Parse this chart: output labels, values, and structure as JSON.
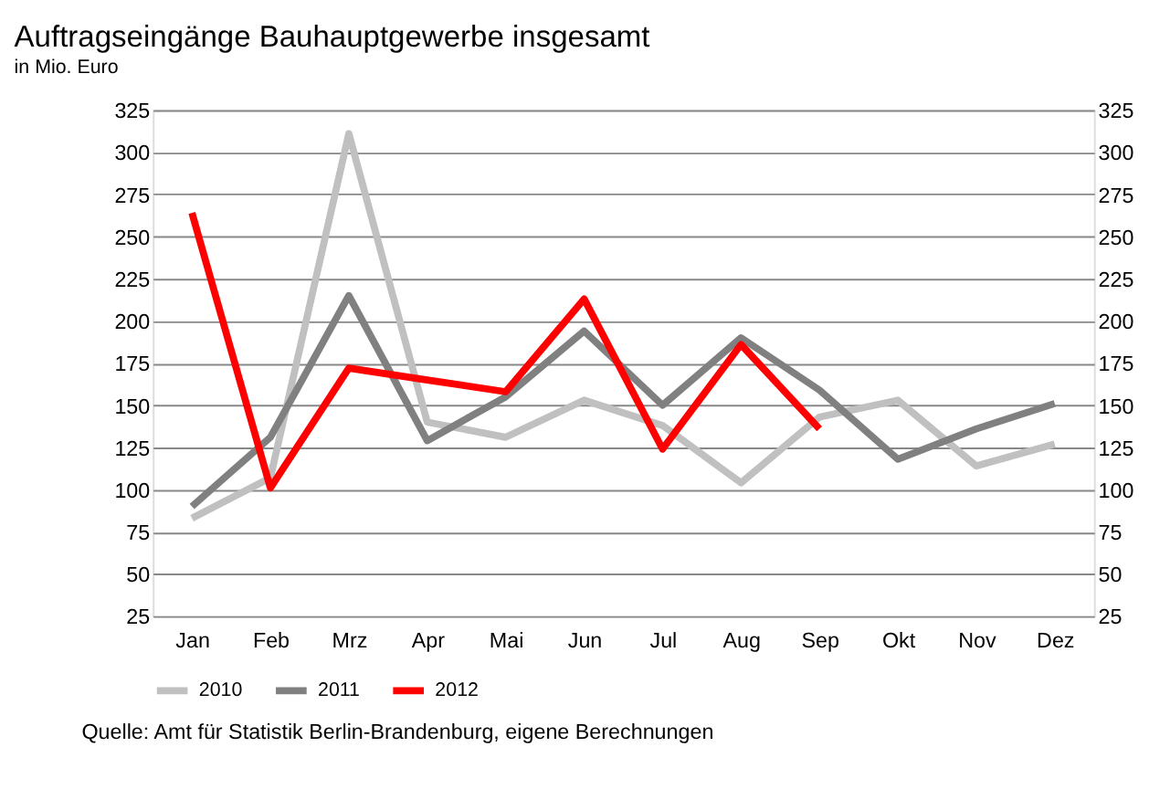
{
  "chart_data": {
    "type": "line",
    "title": "Auftragseingänge Bauhauptgewerbe insgesamt",
    "subtitle": "in Mio. Euro",
    "categories": [
      "Jan",
      "Feb",
      "Mrz",
      "Apr",
      "Mai",
      "Jun",
      "Jul",
      "Aug",
      "Sep",
      "Okt",
      "Nov",
      "Dez"
    ],
    "series": [
      {
        "name": "2010",
        "color": "#c0c0c0",
        "values": [
          83,
          107,
          311,
          140,
          131,
          153,
          138,
          104,
          143,
          153,
          114,
          127
        ]
      },
      {
        "name": "2011",
        "color": "#808080",
        "values": [
          90,
          131,
          215,
          129,
          155,
          194,
          150,
          190,
          159,
          118,
          136,
          151
        ]
      },
      {
        "name": "2012",
        "color": "#ff0000",
        "values": [
          264,
          101,
          172,
          165,
          158,
          213,
          124,
          186,
          136,
          null,
          null,
          null
        ]
      }
    ],
    "ylim": [
      25,
      325
    ],
    "yticks": [
      25,
      50,
      75,
      100,
      125,
      150,
      175,
      200,
      225,
      250,
      275,
      300,
      325
    ],
    "y2lim": [
      25,
      325
    ],
    "y2ticks": [
      25,
      50,
      75,
      100,
      125,
      150,
      175,
      200,
      225,
      250,
      275,
      300,
      325
    ],
    "grid": "y",
    "legend": "bottom left",
    "marker": "none",
    "line_style": "solid",
    "annotations": [
      "Quelle: Amt für Statistik Berlin-Brandenburg, eigene Berechnungen"
    ]
  }
}
